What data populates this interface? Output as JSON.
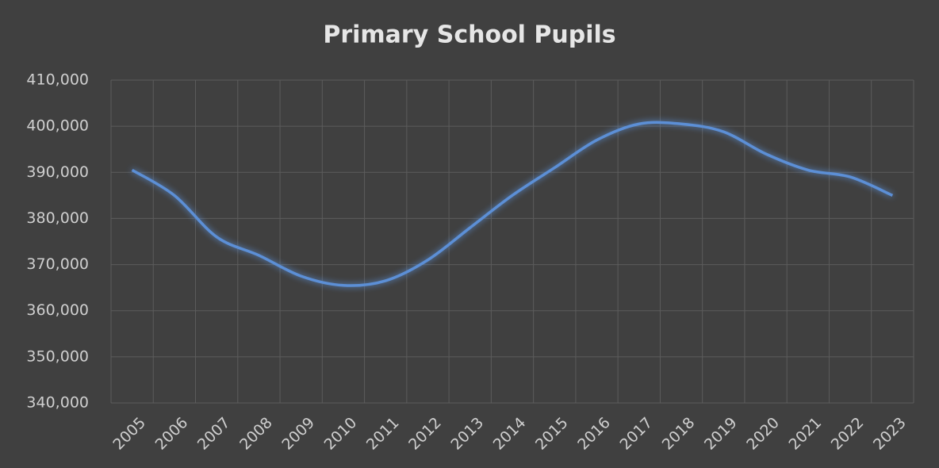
{
  "chart_data": {
    "type": "line",
    "title": "Primary School Pupils",
    "categories": [
      "2005",
      "2006",
      "2007",
      "2008",
      "2009",
      "2010",
      "2011",
      "2012",
      "2013",
      "2014",
      "2015",
      "2016",
      "2017",
      "2018",
      "2019",
      "2020",
      "2021",
      "2022",
      "2023"
    ],
    "series": [
      {
        "name": "Primary School Pupils",
        "color": "#5b8fd6",
        "values": [
          390500,
          385000,
          376000,
          372000,
          367500,
          365500,
          366500,
          371000,
          378000,
          385000,
          391000,
          397000,
          400500,
          400500,
          398800,
          394000,
          390500,
          389000,
          385000
        ]
      }
    ],
    "ylim": [
      340000,
      410000
    ],
    "yticks": [
      {
        "value": 340000,
        "label": "340,000"
      },
      {
        "value": 350000,
        "label": "350,000"
      },
      {
        "value": 360000,
        "label": "360,000"
      },
      {
        "value": 370000,
        "label": "370,000"
      },
      {
        "value": 380000,
        "label": "380,000"
      },
      {
        "value": 390000,
        "label": "390,000"
      },
      {
        "value": 400000,
        "label": "400,000"
      },
      {
        "value": 410000,
        "label": "410,000"
      }
    ],
    "grid": true
  }
}
